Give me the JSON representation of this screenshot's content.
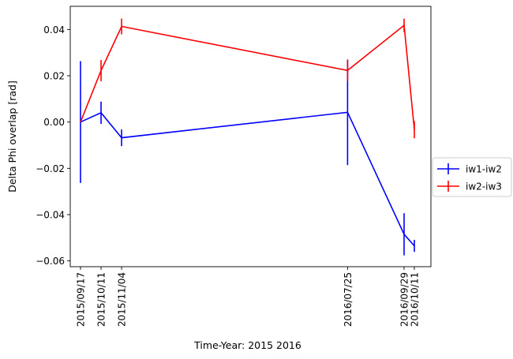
{
  "chart_data": {
    "type": "line",
    "title": "",
    "xlabel": "Time-Year: 2015 2016",
    "ylabel": "Delta Phi overlap [rad]",
    "x": [
      "2015/09/17",
      "2015/10/11",
      "2015/11/04",
      "2016/07/25",
      "2016/09/29",
      "2016/10/11"
    ],
    "x_tick_labels": [
      "2015/09/17",
      "2015/10/11",
      "2015/11/04",
      "2016/07/25",
      "2016/09/29",
      "2016/10/11"
    ],
    "ylim": [
      -0.0625,
      0.05
    ],
    "y_ticks": [
      0.04,
      0.02,
      0.0,
      -0.02,
      -0.04,
      -0.06
    ],
    "y_tick_labels": [
      "0.04",
      "0.02",
      "0.00",
      "−0.02",
      "−0.04",
      "−0.06"
    ],
    "grid": false,
    "legend_position": "right",
    "series": [
      {
        "name": "iw1-iw2",
        "color": "#0000ff",
        "values": [
          0.0,
          0.004,
          -0.0068,
          0.0042,
          -0.0485,
          -0.0535
        ],
        "errors": [
          0.0263,
          0.0048,
          0.0036,
          0.0228,
          0.0091,
          0.0026
        ]
      },
      {
        "name": "iw2-iw3",
        "color": "#ff0000",
        "values": [
          0.0,
          0.0222,
          0.0413,
          0.0223,
          0.0418,
          -0.0033
        ],
        "errors": [
          0.0,
          0.0046,
          0.0034,
          0.0046,
          0.0029,
          0.0037
        ]
      }
    ]
  }
}
